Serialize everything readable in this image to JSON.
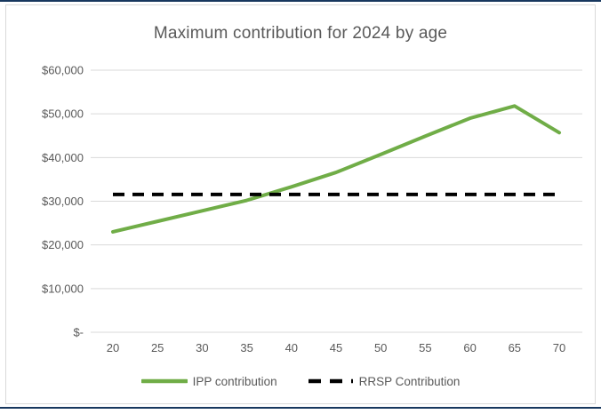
{
  "frame": {
    "edge_color": "#17375e",
    "border_color": "#d9d9d9",
    "background": "#ffffff"
  },
  "text_color": "#595959",
  "gridline_color": "#d9d9d9",
  "chart_data": {
    "type": "line",
    "title": "Maximum contribution for 2024 by age",
    "categories": [
      20,
      25,
      30,
      35,
      40,
      45,
      50,
      55,
      60,
      65,
      70
    ],
    "series": [
      {
        "name": "IPP contribution",
        "color": "#70ad47",
        "style": "solid",
        "values": [
          23000,
          25400,
          27800,
          30200,
          33300,
          36600,
          40700,
          44900,
          49000,
          51800,
          45700
        ]
      },
      {
        "name": "RRSP Contribution",
        "color": "#000000",
        "style": "dashed",
        "values": [
          31560,
          31560,
          31560,
          31560,
          31560,
          31560,
          31560,
          31560,
          31560,
          31560,
          31560
        ]
      }
    ],
    "xlabel": "",
    "ylabel": "",
    "ylim": [
      0,
      60000
    ],
    "ytick_step": 10000,
    "ytick_labels": [
      "$-",
      "$10,000",
      "$20,000",
      "$30,000",
      "$40,000",
      "$50,000",
      "$60,000"
    ],
    "grid": true,
    "legend_position": "bottom"
  }
}
